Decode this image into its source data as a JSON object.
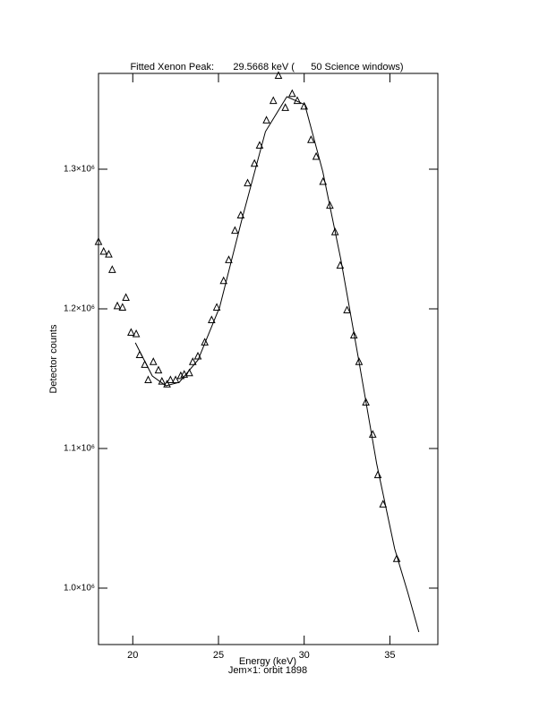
{
  "chart_data": {
    "type": "scatter",
    "title": "Fitted Xenon Peak:       29.5668 keV (      50 Science windows)",
    "x_label": "Energy (keV)",
    "y_label": "Detector counts",
    "subtitle": "Jem×1: orbit 1898",
    "xlim": [
      18,
      37.8
    ],
    "xticks": [
      20,
      25,
      30,
      35
    ],
    "ylim": [
      959600,
      1368600
    ],
    "yticks": [
      {
        "value": 1000000,
        "label": "1.0×10⁶"
      },
      {
        "value": 1100000,
        "label": "1.1×10⁶"
      },
      {
        "value": 1200000,
        "label": "1.2×10⁶"
      },
      {
        "value": 1300000,
        "label": "1.3×10⁶"
      }
    ],
    "series": [
      {
        "type": "scatter",
        "marker": "triangle",
        "color": "#000000",
        "x": [
          18.0,
          18.3,
          18.6,
          18.8,
          19.1,
          19.4,
          19.6,
          19.9,
          20.2,
          20.4,
          20.7,
          20.9,
          21.2,
          21.5,
          21.7,
          22.0,
          22.2,
          22.5,
          22.8,
          23.0,
          23.3,
          23.5,
          23.8,
          24.2,
          24.6,
          24.9,
          25.3,
          25.6,
          25.96,
          26.3,
          26.7,
          27.1,
          27.4,
          27.8,
          28.2,
          28.5,
          28.9,
          29.3,
          29.6,
          30.0,
          30.4,
          30.7,
          31.1,
          31.5,
          31.8,
          32.1,
          32.5,
          32.9,
          33.2,
          33.6,
          34.0,
          34.3,
          34.6,
          35.4
        ],
        "values": [
          1248000,
          1241000,
          1239000,
          1228000,
          1202000,
          1201000,
          1208000,
          1183000,
          1182000,
          1167000,
          1160000,
          1149000,
          1162000,
          1156000,
          1148000,
          1146000,
          1149000,
          1149000,
          1152000,
          1153000,
          1154000,
          1162000,
          1166000,
          1176000,
          1192000,
          1201000,
          1220000,
          1235000,
          1256000,
          1267000,
          1290000,
          1304000,
          1317000,
          1335000,
          1349000,
          1367000,
          1344000,
          1354000,
          1349000,
          1345000,
          1321000,
          1309000,
          1291000,
          1274000,
          1255000,
          1231000,
          1199000,
          1181000,
          1162000,
          1133000,
          1110000,
          1081000,
          1060000,
          1021000
        ]
      },
      {
        "type": "line",
        "color": "#000000",
        "x": [
          20.15,
          21.14,
          21.93,
          22.71,
          23.81,
          25.07,
          26.38,
          27.74,
          28.99,
          30.04,
          31.09,
          32.14,
          33.18,
          34.23,
          35.28,
          36.06,
          36.69
        ],
        "values": [
          1175700,
          1151900,
          1144900,
          1147400,
          1163500,
          1201300,
          1264700,
          1326900,
          1351900,
          1346200,
          1298100,
          1235300,
          1163500,
          1089100,
          1028200,
          996200,
          968600
        ]
      }
    ]
  }
}
